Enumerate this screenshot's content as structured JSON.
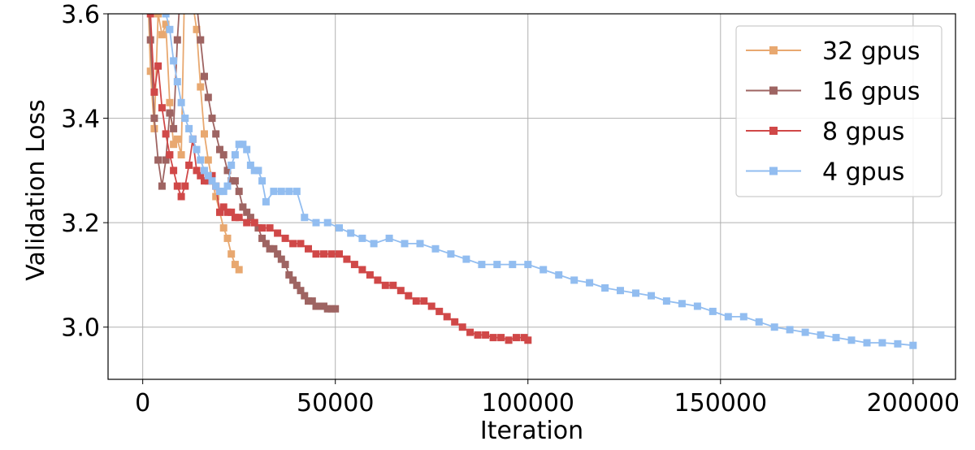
{
  "chart_data": {
    "type": "line",
    "xlabel": "Iteration",
    "ylabel": "Validation Loss",
    "xlim": [
      -9000,
      211000
    ],
    "ylim": [
      2.9,
      3.6
    ],
    "grid": true,
    "legend_position": "top-right",
    "x_ticks": [
      0,
      50000,
      100000,
      150000,
      200000
    ],
    "x_tick_labels": [
      "0",
      "50000",
      "100000",
      "150000",
      "200000"
    ],
    "y_ticks": [
      3.0,
      3.2,
      3.4,
      3.6
    ],
    "y_tick_labels": [
      "3.0",
      "3.2",
      "3.4",
      "3.6"
    ],
    "series": [
      {
        "name": "32 gpus",
        "color": "#E8A870",
        "x": [
          1000,
          2000,
          3000,
          4000,
          5000,
          6000,
          7000,
          8000,
          9000,
          10000,
          11000,
          12000,
          13000,
          14000,
          15000,
          16000,
          17000,
          18000,
          19000,
          20000,
          21000,
          22000,
          23000,
          24000,
          25000
        ],
        "y": [
          3.72,
          3.49,
          3.38,
          3.6,
          3.56,
          3.58,
          3.43,
          3.35,
          3.36,
          3.33,
          3.7,
          3.66,
          3.62,
          3.57,
          3.46,
          3.37,
          3.32,
          3.28,
          3.25,
          3.22,
          3.19,
          3.17,
          3.14,
          3.12,
          3.11
        ]
      },
      {
        "name": "16 gpus",
        "color": "#9E6462",
        "x": [
          1000,
          2000,
          3000,
          4000,
          5000,
          6000,
          7000,
          8000,
          9000,
          10000,
          11000,
          12000,
          13000,
          14000,
          15000,
          16000,
          17000,
          18000,
          19000,
          20000,
          21000,
          22000,
          23000,
          24000,
          25000,
          26000,
          27000,
          28000,
          29000,
          30000,
          31000,
          32000,
          33000,
          34000,
          35000,
          36000,
          37000,
          38000,
          39000,
          40000,
          41000,
          42000,
          43000,
          44000,
          45000,
          46000,
          47000,
          48000,
          49000,
          50000
        ],
        "y": [
          3.72,
          3.55,
          3.4,
          3.32,
          3.27,
          3.32,
          3.41,
          3.38,
          3.55,
          3.67,
          3.7,
          3.72,
          3.66,
          3.62,
          3.55,
          3.48,
          3.44,
          3.4,
          3.37,
          3.34,
          3.33,
          3.3,
          3.28,
          3.28,
          3.26,
          3.23,
          3.22,
          3.21,
          3.2,
          3.19,
          3.17,
          3.16,
          3.15,
          3.15,
          3.14,
          3.13,
          3.12,
          3.1,
          3.09,
          3.08,
          3.07,
          3.06,
          3.05,
          3.05,
          3.04,
          3.04,
          3.04,
          3.035,
          3.035,
          3.035
        ]
      },
      {
        "name": "8 gpus",
        "color": "#D04848",
        "x": [
          1000,
          2000,
          3000,
          4000,
          5000,
          6000,
          7000,
          8000,
          9000,
          10000,
          11000,
          12000,
          13000,
          14000,
          15000,
          16000,
          17000,
          18000,
          19000,
          20000,
          21000,
          22000,
          23000,
          24000,
          25000,
          27000,
          29000,
          31000,
          33000,
          35000,
          37000,
          39000,
          41000,
          43000,
          45000,
          47000,
          49000,
          51000,
          53000,
          55000,
          57000,
          59000,
          61000,
          63000,
          65000,
          67000,
          69000,
          71000,
          73000,
          75000,
          77000,
          79000,
          81000,
          83000,
          85000,
          87000,
          89000,
          91000,
          93000,
          95000,
          97000,
          99000,
          100000
        ],
        "y": [
          3.72,
          3.6,
          3.45,
          3.5,
          3.42,
          3.37,
          3.33,
          3.3,
          3.27,
          3.25,
          3.27,
          3.31,
          3.36,
          3.3,
          3.29,
          3.28,
          3.28,
          3.29,
          3.27,
          3.22,
          3.23,
          3.22,
          3.22,
          3.21,
          3.21,
          3.2,
          3.2,
          3.19,
          3.19,
          3.18,
          3.17,
          3.16,
          3.16,
          3.15,
          3.14,
          3.14,
          3.14,
          3.14,
          3.13,
          3.12,
          3.11,
          3.1,
          3.09,
          3.08,
          3.08,
          3.07,
          3.06,
          3.05,
          3.05,
          3.04,
          3.03,
          3.02,
          3.01,
          3.0,
          2.99,
          2.985,
          2.985,
          2.98,
          2.98,
          2.975,
          2.98,
          2.98,
          2.975
        ]
      },
      {
        "name": "4 gpus",
        "color": "#92BDF0",
        "x": [
          3000,
          4000,
          5000,
          6000,
          7000,
          8000,
          9000,
          10000,
          11000,
          12000,
          13000,
          14000,
          15000,
          16000,
          17000,
          18000,
          19000,
          20000,
          21000,
          22000,
          23000,
          24000,
          25000,
          26000,
          27000,
          28000,
          29000,
          30000,
          31000,
          32000,
          34000,
          36000,
          38000,
          40000,
          42000,
          45000,
          48000,
          51000,
          54000,
          57000,
          60000,
          64000,
          68000,
          72000,
          76000,
          80000,
          84000,
          88000,
          92000,
          96000,
          100000,
          104000,
          108000,
          112000,
          116000,
          120000,
          124000,
          128000,
          132000,
          136000,
          140000,
          144000,
          148000,
          152000,
          156000,
          160000,
          164000,
          168000,
          172000,
          176000,
          180000,
          184000,
          188000,
          192000,
          196000,
          200000
        ],
        "y": [
          3.72,
          3.7,
          3.66,
          3.6,
          3.57,
          3.51,
          3.47,
          3.43,
          3.4,
          3.38,
          3.36,
          3.34,
          3.32,
          3.3,
          3.29,
          3.28,
          3.27,
          3.26,
          3.26,
          3.27,
          3.31,
          3.33,
          3.35,
          3.35,
          3.34,
          3.31,
          3.3,
          3.3,
          3.28,
          3.24,
          3.26,
          3.26,
          3.26,
          3.26,
          3.21,
          3.2,
          3.2,
          3.19,
          3.18,
          3.17,
          3.16,
          3.17,
          3.16,
          3.16,
          3.15,
          3.14,
          3.13,
          3.12,
          3.12,
          3.12,
          3.12,
          3.11,
          3.1,
          3.09,
          3.085,
          3.075,
          3.07,
          3.065,
          3.06,
          3.05,
          3.045,
          3.04,
          3.03,
          3.02,
          3.02,
          3.01,
          3.0,
          2.995,
          2.99,
          2.985,
          2.98,
          2.975,
          2.97,
          2.97,
          2.968,
          2.965
        ]
      }
    ]
  }
}
